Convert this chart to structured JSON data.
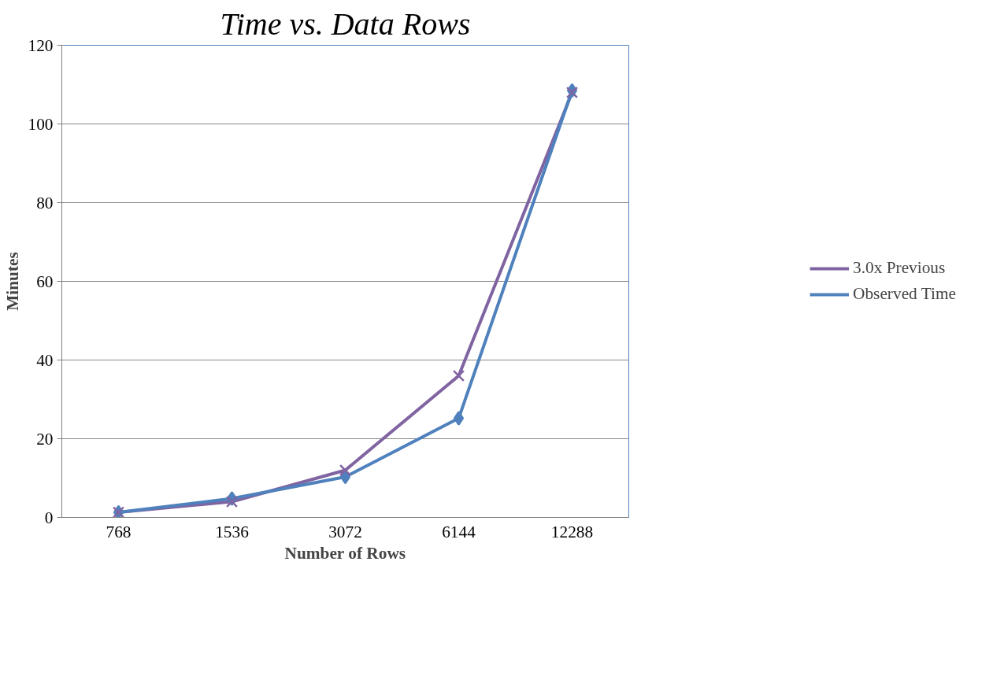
{
  "chart_data": {
    "type": "line",
    "title": "Time vs. Data Rows",
    "xlabel": "Number of Rows",
    "ylabel": "Minutes",
    "categories": [
      "768",
      "1536",
      "3072",
      "6144",
      "12288"
    ],
    "series": [
      {
        "name": "3.0x Previous",
        "color": "#8064a2",
        "marker": "cross",
        "values": [
          1.3,
          4,
          12,
          36,
          108
        ]
      },
      {
        "name": "Observed Time",
        "color": "#4f81bd",
        "marker": "diamond",
        "values": [
          1.3,
          4.8,
          10.3,
          25.2,
          108.5
        ]
      }
    ],
    "ylim": [
      0,
      120
    ],
    "yticks": [
      0,
      20,
      40,
      60,
      80,
      100,
      120
    ],
    "grid": "y",
    "legend": "right",
    "line_style": "solid"
  }
}
